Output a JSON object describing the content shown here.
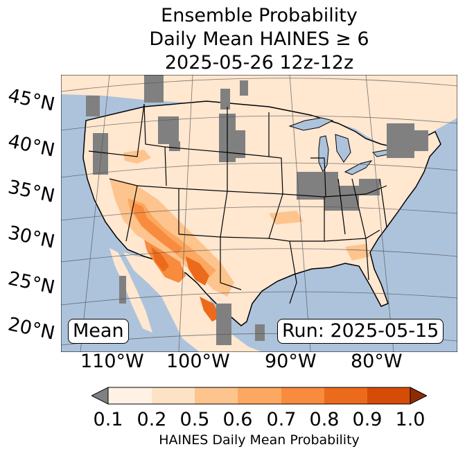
{
  "title": {
    "line1": "Ensemble Probability",
    "line2": "Daily Mean HAINES ≥ 6",
    "line3": "2025-05-26 12z-12z"
  },
  "map": {
    "lat_labels": [
      "45°N",
      "40°N",
      "35°N",
      "30°N",
      "25°N",
      "20°N"
    ],
    "lon_labels": [
      "110°W",
      "100°W",
      "90°W",
      "80°W"
    ],
    "stat_box": "Mean",
    "run_box": "Run: 2025-05-15",
    "colors": {
      "ocean": "#adc3dc",
      "land": "#ffe7d0",
      "no_data": "#808080",
      "borders": "#000000",
      "graticule": "#555555"
    }
  },
  "colorbar": {
    "ticks": [
      "0.1",
      "0.2",
      "0.5",
      "0.6",
      "0.7",
      "0.8",
      "0.9",
      "1.0"
    ],
    "label": "HAINES Daily Mean Probability",
    "colors": [
      "#fff1e4",
      "#fee2c6",
      "#fdc48e",
      "#fca860",
      "#f88b3d",
      "#ec6a1b",
      "#d44c06"
    ],
    "under_color": "#808080",
    "over_color": "#8e2d04"
  }
}
